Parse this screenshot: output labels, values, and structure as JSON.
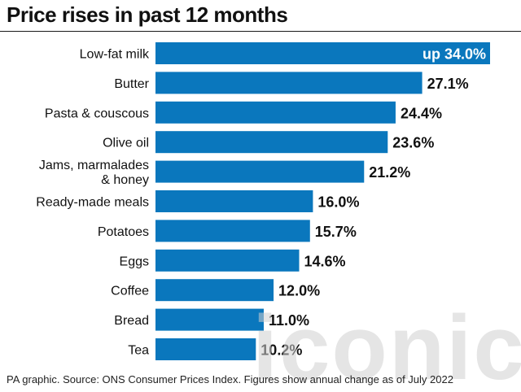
{
  "title": "Price rises in past 12 months",
  "footnote": "PA graphic. Source: ONS Consumer Prices Index. Figures show annual change as of July 2022",
  "watermark": "iconic",
  "colors": {
    "bar": "#0a77bd",
    "text": "#111111",
    "first_label": "#ffffff"
  },
  "chart_data": {
    "type": "bar",
    "orientation": "horizontal",
    "title": "Price rises in past 12 months",
    "xlim": [
      0,
      34.0
    ],
    "grid": false,
    "categories": [
      [
        "Low-fat milk"
      ],
      [
        "Butter"
      ],
      [
        "Pasta & couscous"
      ],
      [
        "Olive oil"
      ],
      [
        "Jams, marmalades",
        "& honey"
      ],
      [
        "Ready-made meals"
      ],
      [
        "Potatoes"
      ],
      [
        "Eggs"
      ],
      [
        "Coffee"
      ],
      [
        "Bread"
      ],
      [
        "Tea"
      ]
    ],
    "values": [
      34.0,
      27.1,
      24.4,
      23.6,
      21.2,
      16.0,
      15.7,
      14.6,
      12.0,
      11.0,
      10.2
    ],
    "value_labels": [
      "up 34.0%",
      "27.1%",
      "24.4%",
      "23.6%",
      "21.2%",
      "16.0%",
      "15.7%",
      "14.6%",
      "12.0%",
      "11.0%",
      "10.2%"
    ]
  }
}
